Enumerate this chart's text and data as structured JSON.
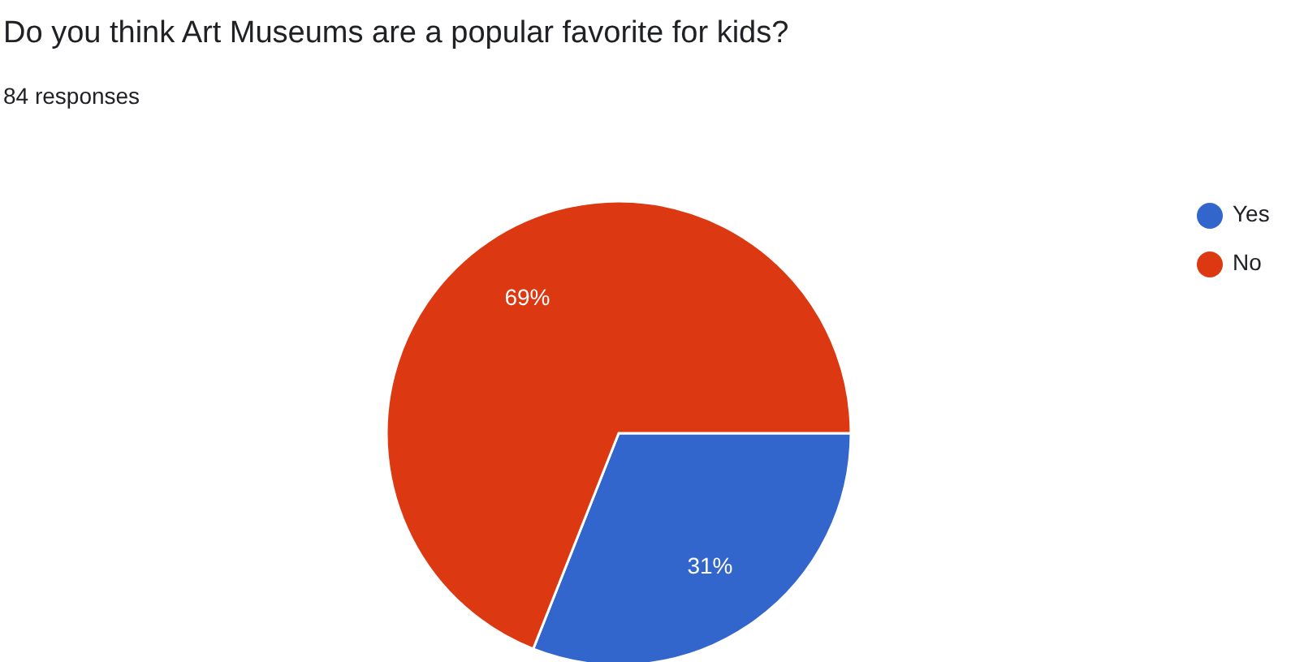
{
  "chart_data": {
    "type": "pie",
    "title": "Do you think Art Museums are a popular favorite for kids?",
    "subtitle": "84 responses",
    "categories": [
      "Yes",
      "No"
    ],
    "values": [
      31,
      69
    ],
    "value_labels": [
      "31%",
      "69%"
    ],
    "colors": [
      "#3366cc",
      "#dc3912"
    ],
    "legend": "top right"
  }
}
